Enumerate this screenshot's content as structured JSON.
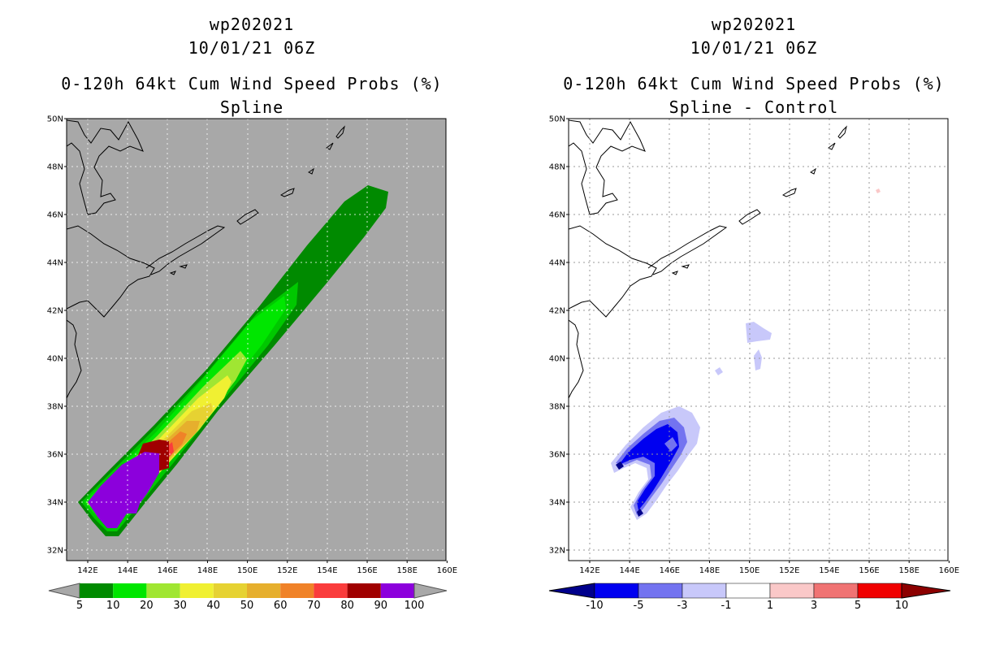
{
  "left_panel": {
    "storm_id": "wp202021",
    "datetime": "10/01/21 06Z",
    "product": "0-120h 64kt Cum Wind Speed Probs (%)",
    "subtitle": "Spline",
    "background_color": "#a8a8a8",
    "colorbar": {
      "labels": [
        "5",
        "10",
        "20",
        "30",
        "40",
        "50",
        "60",
        "70",
        "80",
        "90",
        "100"
      ],
      "colors": [
        "#008a00",
        "#00c800",
        "#00e600",
        "#a0e632",
        "#f0f032",
        "#e6d232",
        "#e6af2d",
        "#f08228",
        "#fa3c3c",
        "#a00000",
        "#8c00dc"
      ]
    }
  },
  "right_panel": {
    "storm_id": "wp202021",
    "datetime": "10/01/21 06Z",
    "product": "0-120h 64kt Cum Wind Speed Probs (%)",
    "subtitle": "Spline - Control",
    "colorbar": {
      "labels": [
        "-10",
        "-5",
        "-3",
        "-1",
        "1",
        "3",
        "5",
        "10"
      ],
      "colors": [
        "#00008c",
        "#0000f0",
        "#7373f0",
        "#c8c8fa",
        "#ffffff",
        "#fac8c8",
        "#f07373",
        "#f00000",
        "#8c0000"
      ]
    }
  },
  "axes": {
    "lat_labels": [
      "32N",
      "34N",
      "36N",
      "38N",
      "40N",
      "42N",
      "44N",
      "46N",
      "48N",
      "50N"
    ],
    "lon_labels": [
      "142E",
      "144E",
      "146E",
      "148E",
      "150E",
      "152E",
      "154E",
      "156E",
      "158E",
      "160E"
    ],
    "lat_range": [
      31.5,
      50
    ],
    "lon_range": [
      141.1,
      160
    ]
  }
}
